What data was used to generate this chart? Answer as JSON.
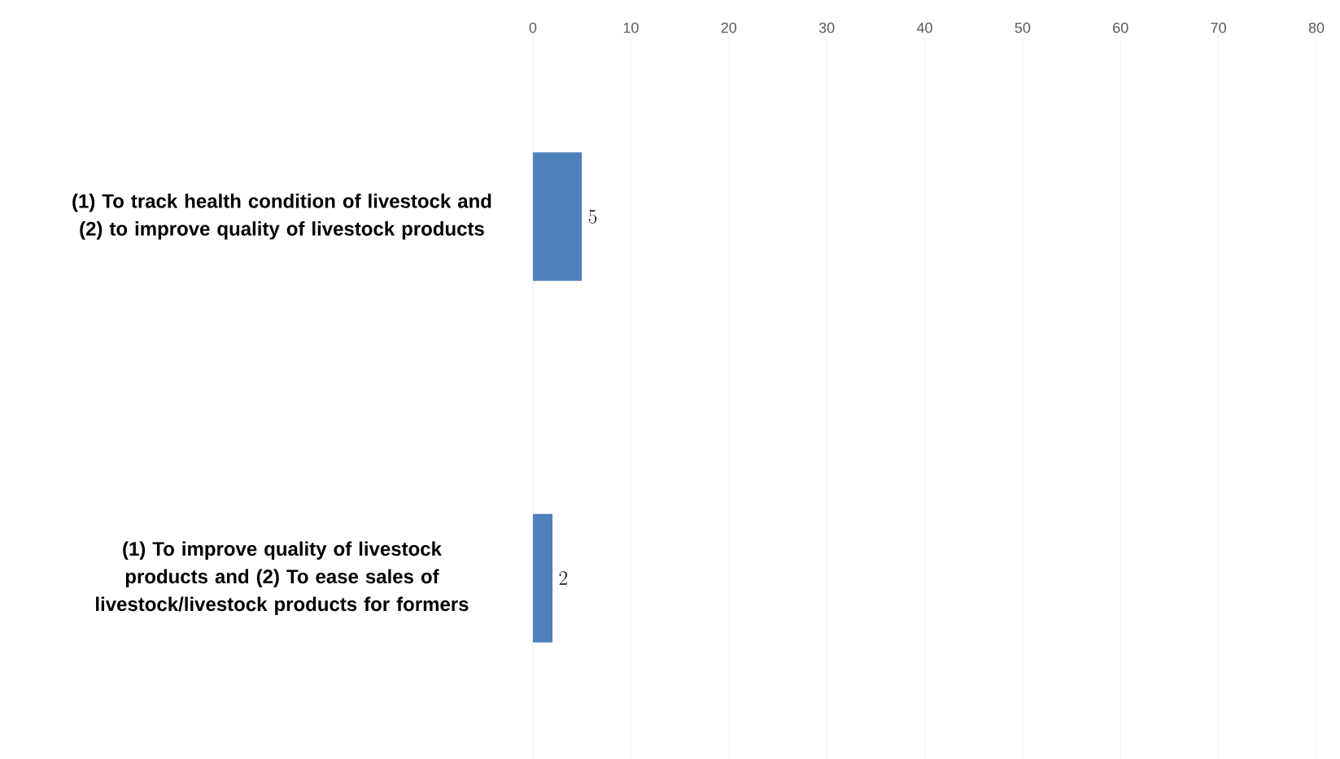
{
  "chart_data": {
    "type": "bar",
    "orientation": "horizontal",
    "categories": [
      "(1) To track health condition of livestock and (2) to improve quality of livestock products",
      "(1) To improve quality of livestock products and (2) To ease sales of livestock/livestock products for formers"
    ],
    "values": [
      5,
      2
    ],
    "color": "#4f81bd",
    "xlim": [
      0,
      80
    ],
    "xticks": [
      0,
      10,
      20,
      30,
      40,
      50,
      60,
      70,
      80
    ],
    "grid": "x",
    "data_labels": true
  }
}
